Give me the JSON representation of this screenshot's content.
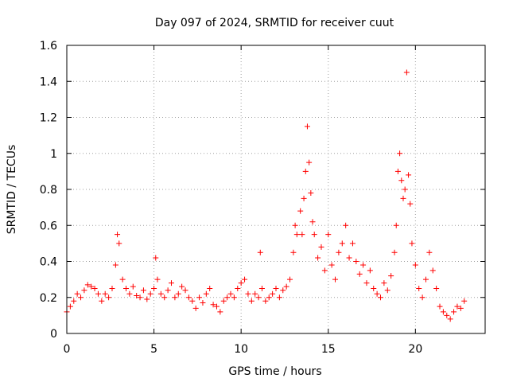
{
  "chart_data": {
    "type": "scatter",
    "title": "Day 097 of 2024, SRMTID for receiver cuut",
    "xlabel": "GPS time / hours",
    "ylabel": "SRMTID / TECUs",
    "xlim": [
      0,
      24
    ],
    "ylim": [
      0,
      1.6
    ],
    "xticks": [
      0,
      5,
      10,
      15,
      20
    ],
    "xtick_labels": [
      "0",
      "5",
      "10",
      "15",
      "20"
    ],
    "yticks": [
      0,
      0.2,
      0.4,
      0.6,
      0.8,
      1.0,
      1.2,
      1.4,
      1.6
    ],
    "ytick_labels": [
      "0",
      "0.2",
      "0.4",
      "0.6",
      "0.8",
      "1",
      "1.2",
      "1.4",
      "1.6"
    ],
    "grid": true,
    "marker": "+",
    "color": "#ff0000",
    "series": [
      {
        "name": "SRMTID",
        "x": [
          0.0,
          0.2,
          0.4,
          0.6,
          0.8,
          1.0,
          1.2,
          1.4,
          1.6,
          1.8,
          2.0,
          2.2,
          2.4,
          2.6,
          2.8,
          2.9,
          3.0,
          3.2,
          3.4,
          3.6,
          3.8,
          4.0,
          4.2,
          4.4,
          4.6,
          4.8,
          5.0,
          5.1,
          5.2,
          5.4,
          5.6,
          5.8,
          6.0,
          6.2,
          6.4,
          6.6,
          6.8,
          7.0,
          7.2,
          7.4,
          7.6,
          7.8,
          8.0,
          8.2,
          8.4,
          8.6,
          8.8,
          9.0,
          9.2,
          9.4,
          9.6,
          9.8,
          10.0,
          10.2,
          10.4,
          10.6,
          10.8,
          11.0,
          11.1,
          11.2,
          11.4,
          11.6,
          11.8,
          12.0,
          12.2,
          12.4,
          12.6,
          12.8,
          13.0,
          13.1,
          13.2,
          13.4,
          13.5,
          13.6,
          13.7,
          13.8,
          13.9,
          14.0,
          14.1,
          14.2,
          14.4,
          14.6,
          14.8,
          15.0,
          15.2,
          15.4,
          15.6,
          15.8,
          16.0,
          16.2,
          16.4,
          16.6,
          16.8,
          17.0,
          17.2,
          17.4,
          17.6,
          17.8,
          18.0,
          18.2,
          18.4,
          18.6,
          18.8,
          18.9,
          19.0,
          19.1,
          19.2,
          19.3,
          19.4,
          19.5,
          19.6,
          19.7,
          19.8,
          20.0,
          20.2,
          20.4,
          20.6,
          20.8,
          21.0,
          21.2,
          21.4,
          21.6,
          21.8,
          22.0,
          22.2,
          22.4,
          22.6,
          22.8
        ],
        "y": [
          0.12,
          0.15,
          0.18,
          0.22,
          0.2,
          0.24,
          0.27,
          0.26,
          0.25,
          0.22,
          0.18,
          0.22,
          0.2,
          0.25,
          0.38,
          0.55,
          0.5,
          0.3,
          0.25,
          0.22,
          0.26,
          0.21,
          0.2,
          0.24,
          0.19,
          0.22,
          0.25,
          0.42,
          0.3,
          0.22,
          0.2,
          0.24,
          0.28,
          0.2,
          0.22,
          0.26,
          0.24,
          0.2,
          0.18,
          0.14,
          0.2,
          0.17,
          0.22,
          0.25,
          0.16,
          0.15,
          0.12,
          0.18,
          0.2,
          0.22,
          0.2,
          0.25,
          0.28,
          0.3,
          0.22,
          0.18,
          0.22,
          0.2,
          0.45,
          0.25,
          0.18,
          0.2,
          0.22,
          0.25,
          0.2,
          0.24,
          0.26,
          0.3,
          0.45,
          0.6,
          0.55,
          0.68,
          0.55,
          0.75,
          0.9,
          1.15,
          0.95,
          0.78,
          0.62,
          0.55,
          0.42,
          0.48,
          0.35,
          0.55,
          0.38,
          0.3,
          0.45,
          0.5,
          0.6,
          0.42,
          0.5,
          0.4,
          0.33,
          0.38,
          0.28,
          0.35,
          0.25,
          0.22,
          0.2,
          0.28,
          0.24,
          0.32,
          0.45,
          0.6,
          0.9,
          1.0,
          0.85,
          0.75,
          0.8,
          1.45,
          0.88,
          0.72,
          0.5,
          0.38,
          0.25,
          0.2,
          0.3,
          0.45,
          0.35,
          0.25,
          0.15,
          0.12,
          0.1,
          0.08,
          0.12,
          0.15,
          0.14,
          0.18
        ]
      }
    ]
  }
}
